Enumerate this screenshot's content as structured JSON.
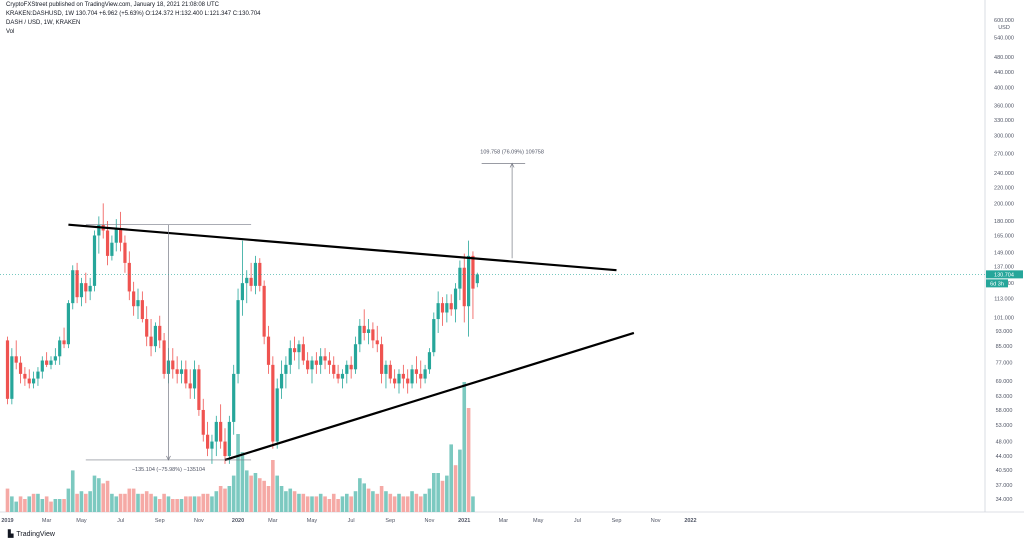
{
  "header": {
    "line1": "CryptoFXStreet published on TradingView.com, January 18, 2021 21:08:08 UTC",
    "line2": "KRAKEN:DASHUSD, 1W 130.704 +6.962 (+5.63%) O:124.372 H:132.400 L:121.347 C:130.704",
    "line3": "DASH / USD, 1W, KRAKEN",
    "line4": "Vol"
  },
  "footer": {
    "brand": "TradingView"
  },
  "chart_data": {
    "type": "candlestick",
    "title": "DASH / USD, 1W, KRAKEN",
    "y_axis_unit": "USD",
    "y_scale": "log",
    "ylim": [
      30,
      600
    ],
    "y_ticks": [
      34,
      37,
      40.5,
      44,
      48,
      53,
      58,
      63,
      69,
      77,
      85,
      93,
      101,
      113,
      124,
      137,
      149,
      165,
      180,
      200,
      220,
      240,
      270,
      300,
      330,
      360,
      400,
      440,
      480,
      540,
      600
    ],
    "y_tick_labels": [
      "34.000",
      "37.000",
      "40.500",
      "44.000",
      "48.000",
      "53.000",
      "58.000",
      "63.000",
      "69.000",
      "77.000",
      "85.000",
      "93.000",
      "101.000",
      "113.000",
      "124.000",
      "137.000",
      "149.000",
      "165.000",
      "180.000",
      "200.000",
      "220.000",
      "240.000",
      "270.000",
      "300.000",
      "330.000",
      "360.000",
      "400.000",
      "440.000",
      "480.000",
      "540.000",
      "600.000"
    ],
    "x_ticks": [
      {
        "label": "2019",
        "week": 0
      },
      {
        "label": "Mar",
        "week": 9
      },
      {
        "label": "May",
        "week": 17
      },
      {
        "label": "Jul",
        "week": 26
      },
      {
        "label": "Sep",
        "week": 35
      },
      {
        "label": "Nov",
        "week": 44
      },
      {
        "label": "2020",
        "week": 53
      },
      {
        "label": "Mar",
        "week": 61
      },
      {
        "label": "May",
        "week": 70
      },
      {
        "label": "Jul",
        "week": 79
      },
      {
        "label": "Sep",
        "week": 88
      },
      {
        "label": "Nov",
        "week": 97
      },
      {
        "label": "2021",
        "week": 105
      },
      {
        "label": "Mar",
        "week": 114
      },
      {
        "label": "May",
        "week": 122
      },
      {
        "label": "Jul",
        "week": 131
      },
      {
        "label": "Sep",
        "week": 140
      },
      {
        "label": "Nov",
        "week": 149
      },
      {
        "label": "2022",
        "week": 157
      }
    ],
    "candles": [
      [
        88,
        90,
        60,
        62
      ],
      [
        62,
        84,
        60,
        80
      ],
      [
        80,
        88,
        74,
        77
      ],
      [
        77,
        80,
        68,
        72
      ],
      [
        72,
        75,
        67,
        70
      ],
      [
        70,
        74,
        66,
        68
      ],
      [
        68,
        73,
        66,
        70
      ],
      [
        70,
        75,
        67,
        73
      ],
      [
        73,
        80,
        70,
        78
      ],
      [
        78,
        82,
        75,
        76
      ],
      [
        76,
        80,
        74,
        78
      ],
      [
        78,
        84,
        76,
        80
      ],
      [
        80,
        90,
        76,
        88
      ],
      [
        88,
        95,
        84,
        86
      ],
      [
        86,
        112,
        84,
        110
      ],
      [
        110,
        138,
        106,
        134
      ],
      [
        134,
        140,
        110,
        114
      ],
      [
        114,
        128,
        108,
        124
      ],
      [
        124,
        132,
        110,
        118
      ],
      [
        118,
        128,
        112,
        122
      ],
      [
        122,
        170,
        118,
        165
      ],
      [
        165,
        185,
        148,
        176
      ],
      [
        176,
        200,
        162,
        170
      ],
      [
        170,
        180,
        138,
        146
      ],
      [
        146,
        165,
        142,
        158
      ],
      [
        158,
        182,
        150,
        172
      ],
      [
        172,
        190,
        150,
        158
      ],
      [
        158,
        165,
        132,
        140
      ],
      [
        140,
        150,
        112,
        118
      ],
      [
        118,
        125,
        102,
        108
      ],
      [
        108,
        120,
        100,
        112
      ],
      [
        112,
        118,
        98,
        100
      ],
      [
        100,
        108,
        85,
        90
      ],
      [
        90,
        100,
        80,
        85
      ],
      [
        85,
        98,
        82,
        96
      ],
      [
        96,
        102,
        84,
        88
      ],
      [
        88,
        92,
        70,
        72
      ],
      [
        72,
        84,
        68,
        78
      ],
      [
        78,
        84,
        70,
        74
      ],
      [
        74,
        80,
        68,
        72
      ],
      [
        72,
        78,
        68,
        74
      ],
      [
        74,
        78,
        66,
        68
      ],
      [
        68,
        74,
        62,
        66
      ],
      [
        66,
        78,
        62,
        74
      ],
      [
        74,
        76,
        56,
        58
      ],
      [
        58,
        62,
        48,
        50
      ],
      [
        50,
        54,
        44,
        46
      ],
      [
        46,
        50,
        42,
        48
      ],
      [
        48,
        56,
        44,
        54
      ],
      [
        54,
        60,
        46,
        48
      ],
      [
        48,
        52,
        42,
        44
      ],
      [
        44,
        56,
        42,
        54
      ],
      [
        54,
        76,
        50,
        72
      ],
      [
        72,
        120,
        68,
        112
      ],
      [
        112,
        160,
        102,
        124
      ],
      [
        124,
        134,
        110,
        128
      ],
      [
        128,
        140,
        118,
        122
      ],
      [
        122,
        146,
        116,
        140
      ],
      [
        140,
        144,
        118,
        122
      ],
      [
        122,
        126,
        86,
        90
      ],
      [
        90,
        96,
        72,
        76
      ],
      [
        76,
        80,
        46,
        48
      ],
      [
        48,
        70,
        46,
        66
      ],
      [
        66,
        78,
        62,
        72
      ],
      [
        72,
        80,
        66,
        76
      ],
      [
        76,
        88,
        72,
        84
      ],
      [
        84,
        90,
        78,
        82
      ],
      [
        82,
        88,
        74,
        86
      ],
      [
        86,
        90,
        76,
        78
      ],
      [
        78,
        82,
        72,
        74
      ],
      [
        74,
        80,
        68,
        78
      ],
      [
        78,
        82,
        72,
        76
      ],
      [
        76,
        84,
        72,
        80
      ],
      [
        80,
        84,
        74,
        78
      ],
      [
        78,
        82,
        72,
        76
      ],
      [
        76,
        80,
        70,
        72
      ],
      [
        72,
        76,
        68,
        70
      ],
      [
        70,
        74,
        66,
        72
      ],
      [
        72,
        78,
        68,
        76
      ],
      [
        76,
        80,
        70,
        74
      ],
      [
        74,
        90,
        72,
        86
      ],
      [
        86,
        100,
        82,
        96
      ],
      [
        96,
        106,
        88,
        92
      ],
      [
        92,
        100,
        86,
        94
      ],
      [
        94,
        98,
        84,
        88
      ],
      [
        88,
        96,
        82,
        86
      ],
      [
        86,
        90,
        68,
        72
      ],
      [
        72,
        78,
        66,
        76
      ],
      [
        76,
        78,
        68,
        70
      ],
      [
        70,
        74,
        66,
        68
      ],
      [
        68,
        74,
        64,
        72
      ],
      [
        72,
        76,
        66,
        70
      ],
      [
        70,
        74,
        64,
        68
      ],
      [
        68,
        76,
        66,
        74
      ],
      [
        74,
        80,
        68,
        72
      ],
      [
        72,
        78,
        66,
        70
      ],
      [
        70,
        76,
        68,
        74
      ],
      [
        74,
        84,
        72,
        82
      ],
      [
        82,
        104,
        80,
        100
      ],
      [
        100,
        118,
        92,
        110
      ],
      [
        110,
        114,
        96,
        104
      ],
      [
        104,
        116,
        98,
        110
      ],
      [
        110,
        116,
        102,
        106
      ],
      [
        106,
        124,
        98,
        120
      ],
      [
        120,
        142,
        112,
        136
      ],
      [
        136,
        148,
        98,
        108
      ],
      [
        108,
        160,
        90,
        146
      ],
      [
        146,
        150,
        100,
        120
      ],
      [
        124,
        132,
        121,
        130.7
      ]
    ],
    "volume": [
      [
        18,
        0
      ],
      [
        12,
        1
      ],
      [
        8,
        1
      ],
      [
        12,
        0
      ],
      [
        10,
        0
      ],
      [
        12,
        1
      ],
      [
        14,
        0
      ],
      [
        14,
        1
      ],
      [
        10,
        1
      ],
      [
        12,
        0
      ],
      [
        8,
        0
      ],
      [
        10,
        1
      ],
      [
        10,
        1
      ],
      [
        10,
        0
      ],
      [
        18,
        1
      ],
      [
        32,
        1
      ],
      [
        14,
        0
      ],
      [
        16,
        1
      ],
      [
        14,
        0
      ],
      [
        16,
        1
      ],
      [
        28,
        1
      ],
      [
        26,
        1
      ],
      [
        22,
        0
      ],
      [
        24,
        0
      ],
      [
        14,
        1
      ],
      [
        12,
        1
      ],
      [
        14,
        0
      ],
      [
        14,
        0
      ],
      [
        18,
        0
      ],
      [
        18,
        0
      ],
      [
        14,
        1
      ],
      [
        14,
        0
      ],
      [
        16,
        0
      ],
      [
        14,
        0
      ],
      [
        12,
        1
      ],
      [
        10,
        0
      ],
      [
        14,
        0
      ],
      [
        12,
        1
      ],
      [
        10,
        0
      ],
      [
        10,
        0
      ],
      [
        10,
        1
      ],
      [
        12,
        0
      ],
      [
        12,
        0
      ],
      [
        12,
        1
      ],
      [
        12,
        0
      ],
      [
        14,
        0
      ],
      [
        14,
        0
      ],
      [
        12,
        1
      ],
      [
        16,
        1
      ],
      [
        20,
        0
      ],
      [
        18,
        0
      ],
      [
        20,
        1
      ],
      [
        28,
        1
      ],
      [
        60,
        1
      ],
      [
        46,
        1
      ],
      [
        32,
        1
      ],
      [
        28,
        0
      ],
      [
        30,
        1
      ],
      [
        26,
        0
      ],
      [
        24,
        0
      ],
      [
        20,
        0
      ],
      [
        40,
        0
      ],
      [
        28,
        1
      ],
      [
        20,
        1
      ],
      [
        16,
        1
      ],
      [
        18,
        1
      ],
      [
        16,
        0
      ],
      [
        14,
        1
      ],
      [
        14,
        0
      ],
      [
        12,
        0
      ],
      [
        12,
        1
      ],
      [
        12,
        0
      ],
      [
        14,
        1
      ],
      [
        12,
        0
      ],
      [
        10,
        0
      ],
      [
        14,
        0
      ],
      [
        10,
        0
      ],
      [
        12,
        1
      ],
      [
        14,
        1
      ],
      [
        12,
        0
      ],
      [
        16,
        1
      ],
      [
        26,
        1
      ],
      [
        22,
        1
      ],
      [
        18,
        0
      ],
      [
        16,
        1
      ],
      [
        14,
        0
      ],
      [
        20,
        0
      ],
      [
        16,
        1
      ],
      [
        14,
        0
      ],
      [
        12,
        0
      ],
      [
        14,
        1
      ],
      [
        12,
        0
      ],
      [
        12,
        0
      ],
      [
        16,
        1
      ],
      [
        14,
        0
      ],
      [
        12,
        0
      ],
      [
        14,
        1
      ],
      [
        18,
        1
      ],
      [
        30,
        1
      ],
      [
        30,
        1
      ],
      [
        24,
        0
      ],
      [
        28,
        1
      ],
      [
        52,
        1
      ],
      [
        36,
        0
      ],
      [
        48,
        1
      ],
      [
        100,
        1
      ],
      [
        80,
        0
      ],
      [
        12,
        1
      ]
    ],
    "trendlines": [
      {
        "from": [
          14,
          176
        ],
        "to": [
          140,
          134
        ]
      },
      {
        "from": [
          50,
          43
        ],
        "to": [
          144,
          92
        ]
      }
    ],
    "measure_down": {
      "label": "−135.104 (−75.98%) −135104",
      "top_price": 176,
      "bottom_price": 43,
      "week": 37,
      "x_from_week": 18,
      "x_to_week": 56
    },
    "measure_up": {
      "label": "109.758 (76.09%) 109758",
      "from_price": 144,
      "to_price": 254,
      "week": 116,
      "x_from_week": 109,
      "x_to_week": 119
    },
    "current_price": {
      "value": 130.704,
      "label": "130.704",
      "countdown": "6d 3h",
      "color": "#26a69a"
    },
    "colors": {
      "up": "#26a69a",
      "down": "#ef5350",
      "vol_up": "#7cc9c0",
      "vol_down": "#f5a9a5",
      "trend": "#000000"
    }
  }
}
